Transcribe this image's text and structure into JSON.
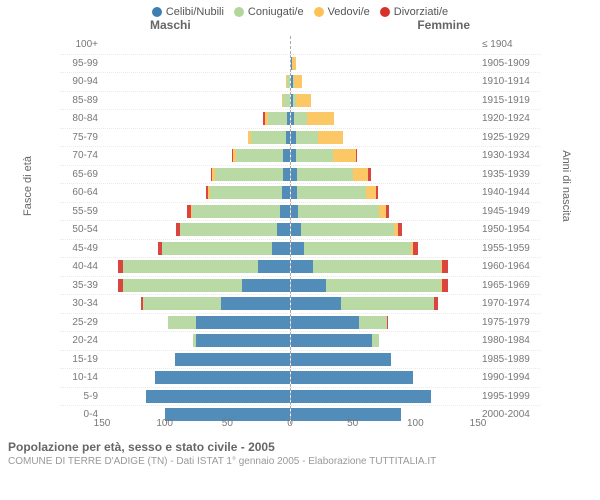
{
  "title": "Popolazione per età, sesso e stato civile - 2005",
  "subtitle": "COMUNE DI TERRE D'ADIGE (TN) - Dati ISTAT 1° gennaio 2005 - Elaborazione TUTTITALIA.IT",
  "legend": [
    {
      "label": "Celibi/Nubili",
      "color": "#3f7fb0"
    },
    {
      "label": "Coniugati/e",
      "color": "#b3d69b"
    },
    {
      "label": "Vedovi/e",
      "color": "#fcc255"
    },
    {
      "label": "Divorziati/e",
      "color": "#d6312a"
    }
  ],
  "header_left": "Maschi",
  "header_right": "Femmine",
  "axis_left_title": "Fasce di età",
  "axis_right_title": "Anni di nascita",
  "xmax": 150,
  "xticks": [
    150,
    100,
    50,
    0,
    50,
    100,
    150
  ],
  "grid_color": "#e9e9e9",
  "background_color": "#ffffff",
  "rows": [
    {
      "age": "100+",
      "birth": "≤ 1904",
      "m": [
        0,
        0,
        0,
        0
      ],
      "f": [
        0,
        0,
        0,
        0
      ]
    },
    {
      "age": "95-99",
      "birth": "1905-1909",
      "m": [
        0,
        0,
        0,
        0
      ],
      "f": [
        1,
        0,
        3,
        0
      ]
    },
    {
      "age": "90-94",
      "birth": "1910-1914",
      "m": [
        0,
        2,
        1,
        0
      ],
      "f": [
        2,
        1,
        6,
        0
      ]
    },
    {
      "age": "85-89",
      "birth": "1915-1919",
      "m": [
        0,
        5,
        1,
        0
      ],
      "f": [
        2,
        2,
        12,
        0
      ]
    },
    {
      "age": "80-84",
      "birth": "1920-1924",
      "m": [
        2,
        15,
        3,
        1
      ],
      "f": [
        3,
        10,
        22,
        0
      ]
    },
    {
      "age": "75-79",
      "birth": "1925-1929",
      "m": [
        3,
        28,
        2,
        0
      ],
      "f": [
        4,
        18,
        20,
        0
      ]
    },
    {
      "age": "70-74",
      "birth": "1930-1934",
      "m": [
        5,
        38,
        2,
        1
      ],
      "f": [
        4,
        30,
        18,
        1
      ]
    },
    {
      "age": "65-69",
      "birth": "1935-1939",
      "m": [
        5,
        55,
        2,
        1
      ],
      "f": [
        5,
        45,
        12,
        2
      ]
    },
    {
      "age": "60-64",
      "birth": "1940-1944",
      "m": [
        6,
        58,
        1,
        2
      ],
      "f": [
        5,
        55,
        8,
        2
      ]
    },
    {
      "age": "55-59",
      "birth": "1945-1949",
      "m": [
        8,
        70,
        1,
        3
      ],
      "f": [
        6,
        65,
        5,
        3
      ]
    },
    {
      "age": "50-54",
      "birth": "1950-1954",
      "m": [
        10,
        78,
        0,
        3
      ],
      "f": [
        8,
        75,
        3,
        3
      ]
    },
    {
      "age": "45-49",
      "birth": "1955-1959",
      "m": [
        14,
        88,
        0,
        3
      ],
      "f": [
        11,
        85,
        2,
        4
      ]
    },
    {
      "age": "40-44",
      "birth": "1960-1964",
      "m": [
        25,
        108,
        0,
        4
      ],
      "f": [
        18,
        102,
        1,
        5
      ]
    },
    {
      "age": "35-39",
      "birth": "1965-1969",
      "m": [
        38,
        95,
        0,
        4
      ],
      "f": [
        28,
        92,
        1,
        5
      ]
    },
    {
      "age": "30-34",
      "birth": "1970-1974",
      "m": [
        55,
        62,
        0,
        2
      ],
      "f": [
        40,
        75,
        0,
        3
      ]
    },
    {
      "age": "25-29",
      "birth": "1975-1979",
      "m": [
        75,
        22,
        0,
        0
      ],
      "f": [
        55,
        22,
        0,
        1
      ]
    },
    {
      "age": "20-24",
      "birth": "1980-1984",
      "m": [
        75,
        2,
        0,
        0
      ],
      "f": [
        65,
        6,
        0,
        0
      ]
    },
    {
      "age": "15-19",
      "birth": "1985-1989",
      "m": [
        92,
        0,
        0,
        0
      ],
      "f": [
        80,
        0,
        0,
        0
      ]
    },
    {
      "age": "10-14",
      "birth": "1990-1994",
      "m": [
        108,
        0,
        0,
        0
      ],
      "f": [
        98,
        0,
        0,
        0
      ]
    },
    {
      "age": "5-9",
      "birth": "1995-1999",
      "m": [
        115,
        0,
        0,
        0
      ],
      "f": [
        112,
        0,
        0,
        0
      ]
    },
    {
      "age": "0-4",
      "birth": "2000-2004",
      "m": [
        100,
        0,
        0,
        0
      ],
      "f": [
        88,
        0,
        0,
        0
      ]
    }
  ]
}
